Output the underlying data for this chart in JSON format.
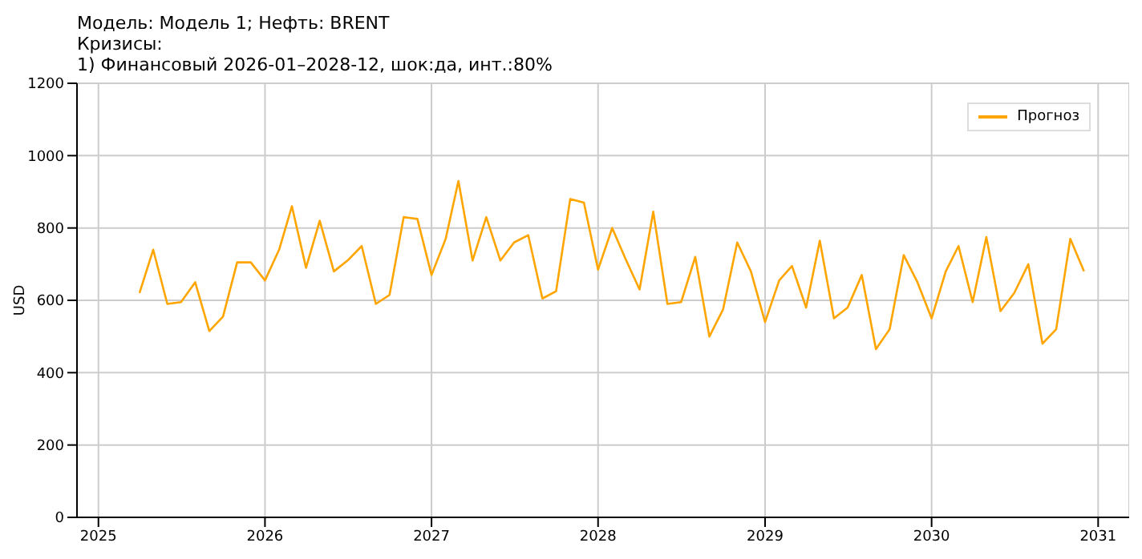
{
  "chart_data": {
    "type": "line",
    "title": "Модель: Модель 1; Нефть: BRENT\nКризисы:\n1) Финансовый 2026-01–2028-12, шок:да, инт.:80%",
    "ylabel": "USD",
    "x": [
      "2025-04",
      "2025-05",
      "2025-06",
      "2025-07",
      "2025-08",
      "2025-09",
      "2025-10",
      "2025-11",
      "2025-12",
      "2026-01",
      "2026-02",
      "2026-03",
      "2026-04",
      "2026-05",
      "2026-06",
      "2026-07",
      "2026-08",
      "2026-09",
      "2026-10",
      "2026-11",
      "2026-12",
      "2027-01",
      "2027-02",
      "2027-03",
      "2027-04",
      "2027-05",
      "2027-06",
      "2027-07",
      "2027-08",
      "2027-09",
      "2027-10",
      "2027-11",
      "2027-12",
      "2028-01",
      "2028-02",
      "2028-03",
      "2028-04",
      "2028-05",
      "2028-06",
      "2028-07",
      "2028-08",
      "2028-09",
      "2028-10",
      "2028-11",
      "2028-12",
      "2029-01",
      "2029-02",
      "2029-03",
      "2029-04",
      "2029-05",
      "2029-06",
      "2029-07",
      "2029-08",
      "2029-09",
      "2029-10",
      "2029-11",
      "2029-12",
      "2030-01",
      "2030-02",
      "2030-03",
      "2030-04",
      "2030-05",
      "2030-06",
      "2030-07",
      "2030-08",
      "2030-09",
      "2030-10",
      "2030-11",
      "2030-12"
    ],
    "series": [
      {
        "name": "Прогноз",
        "color": "#ffa500",
        "values": [
          620,
          740,
          590,
          595,
          650,
          515,
          555,
          705,
          705,
          655,
          740,
          860,
          690,
          820,
          680,
          710,
          750,
          590,
          615,
          830,
          825,
          670,
          770,
          930,
          710,
          830,
          710,
          760,
          780,
          605,
          625,
          880,
          870,
          685,
          800,
          715,
          630,
          845,
          590,
          595,
          720,
          500,
          575,
          760,
          680,
          540,
          655,
          695,
          580,
          765,
          550,
          580,
          670,
          465,
          520,
          725,
          650,
          550,
          680,
          750,
          595,
          775,
          570,
          620,
          700,
          480,
          520,
          770,
          680
        ]
      }
    ],
    "xlim": [
      "2024-11-15",
      "2031-03-10"
    ],
    "xticks": [
      "2025",
      "2026",
      "2027",
      "2028",
      "2029",
      "2030",
      "2031"
    ],
    "ylim": [
      0,
      1200
    ],
    "yticks": [
      0,
      200,
      400,
      600,
      800,
      1000,
      1200
    ],
    "grid": true,
    "legend": "top right"
  }
}
